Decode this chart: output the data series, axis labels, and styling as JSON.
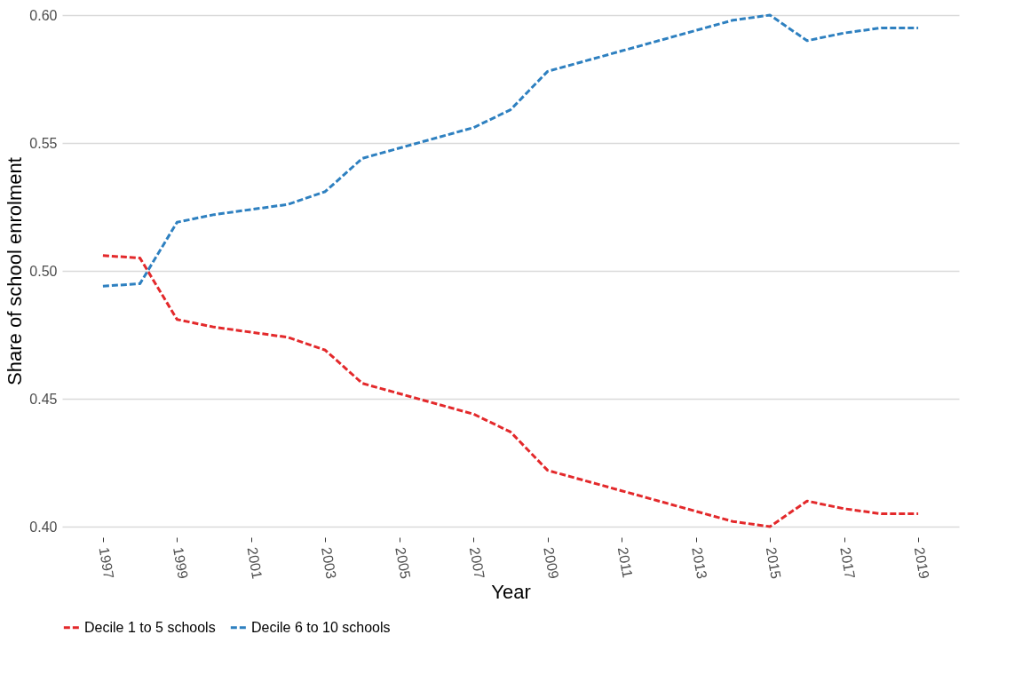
{
  "chart_data": {
    "type": "line",
    "xlabel": "Year",
    "ylabel": "Share of school enrolment",
    "x": [
      1997,
      1998,
      1999,
      2000,
      2001,
      2002,
      2003,
      2004,
      2005,
      2006,
      2007,
      2008,
      2009,
      2010,
      2011,
      2012,
      2013,
      2014,
      2015,
      2016,
      2017,
      2018,
      2019
    ],
    "series": [
      {
        "name": "Decile 1 to 5 schools",
        "color": "#e3292b",
        "values": [
          0.506,
          0.505,
          0.481,
          0.478,
          0.476,
          0.474,
          0.469,
          0.456,
          0.452,
          0.448,
          0.444,
          0.437,
          0.422,
          0.418,
          0.414,
          0.41,
          0.406,
          0.402,
          0.4,
          0.41,
          0.407,
          0.405,
          0.405
        ]
      },
      {
        "name": "Decile 6 to 10 schools",
        "color": "#2e80c0",
        "values": [
          0.494,
          0.495,
          0.519,
          0.522,
          0.524,
          0.526,
          0.531,
          0.544,
          0.548,
          0.552,
          0.556,
          0.563,
          0.578,
          0.582,
          0.586,
          0.59,
          0.594,
          0.598,
          0.6,
          0.59,
          0.593,
          0.595,
          0.595
        ]
      }
    ],
    "xlim": [
      1995.9,
      2020.1
    ],
    "xticks": [
      1997,
      1999,
      2001,
      2003,
      2005,
      2007,
      2009,
      2011,
      2013,
      2015,
      2017,
      2019
    ],
    "ylim": [
      0.4,
      0.6
    ],
    "yticks": [
      {
        "value": 0.4,
        "label": "0.40"
      },
      {
        "value": 0.45,
        "label": "0.45"
      },
      {
        "value": 0.5,
        "label": "0.50"
      },
      {
        "value": 0.55,
        "label": "0.55"
      },
      {
        "value": 0.6,
        "label": "0.60"
      }
    ],
    "grid": "y",
    "legend": "bottom",
    "line_style": "dashed",
    "marker": "none"
  }
}
